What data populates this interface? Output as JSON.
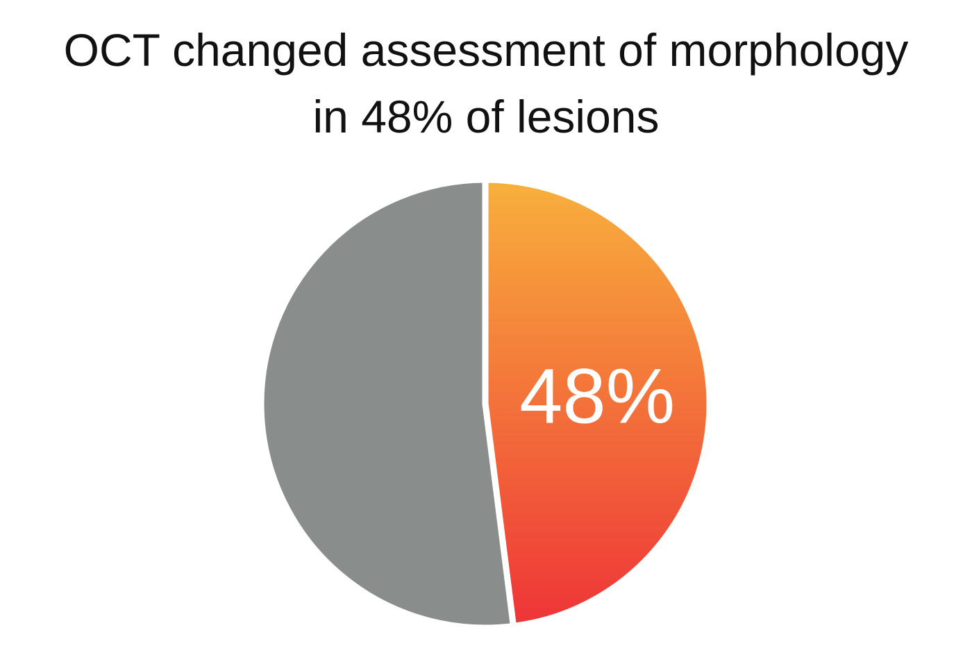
{
  "chart_data": {
    "type": "pie",
    "title": [
      "OCT changed assessment of morphology",
      "in 48% of lesions"
    ],
    "values": [
      48,
      52
    ],
    "value_labels": [
      "48%",
      null
    ],
    "colors": [
      "#f8b03c",
      "#898d8b"
    ],
    "gradient_end": "#ee3438"
  }
}
